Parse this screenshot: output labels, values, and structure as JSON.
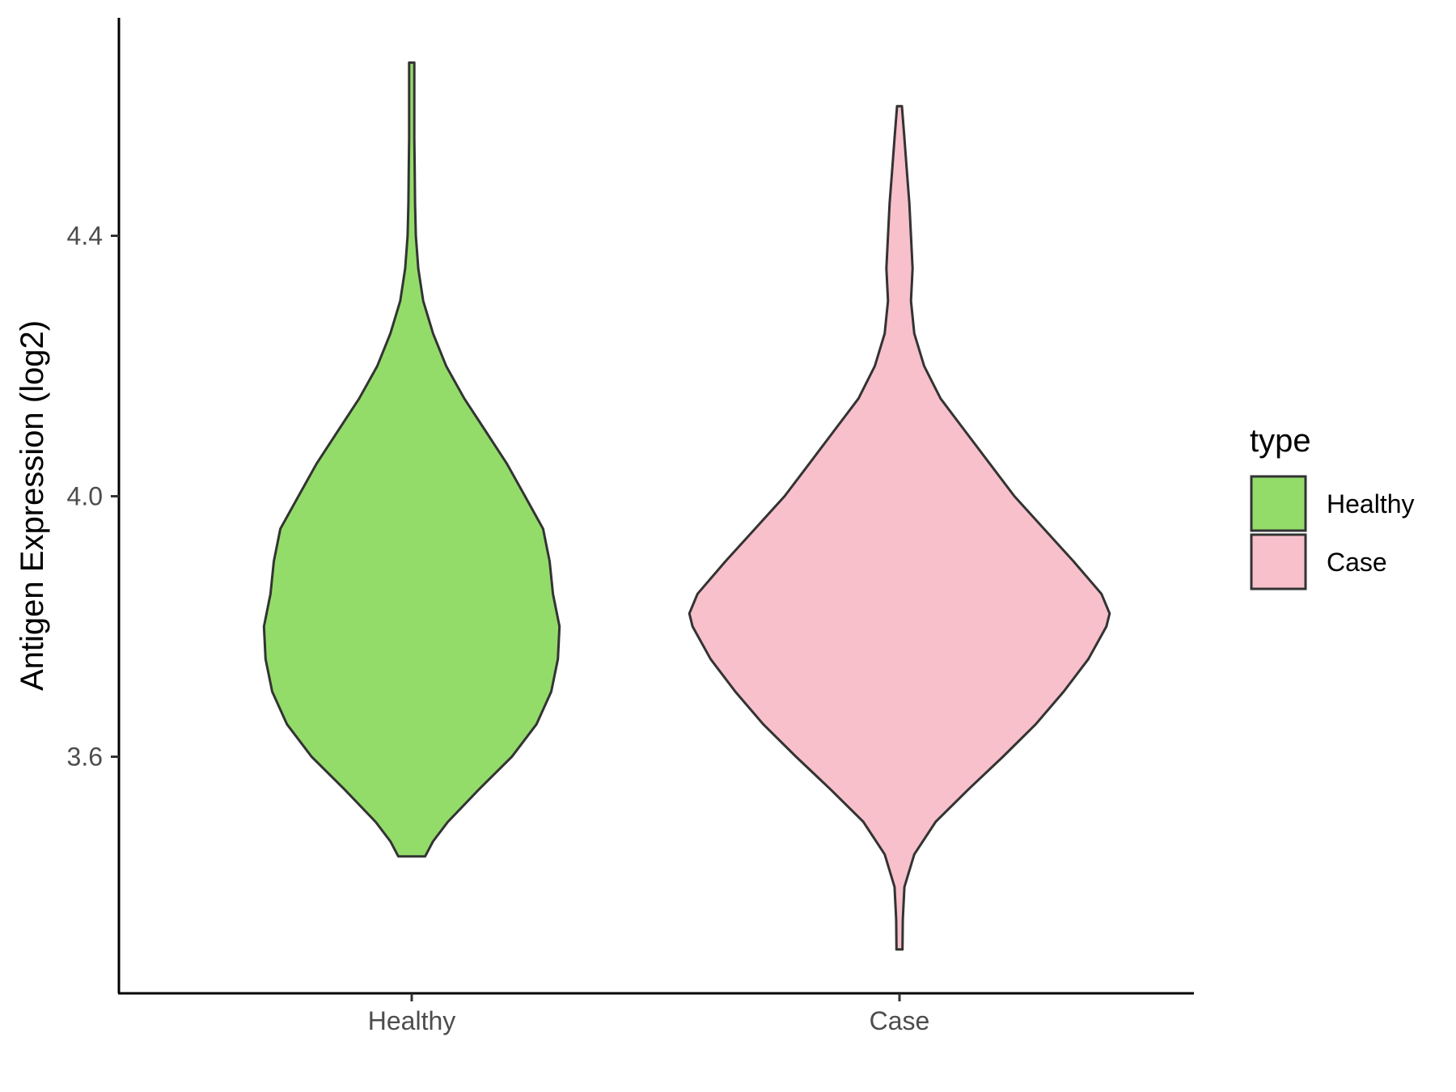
{
  "chart_data": {
    "type": "violin",
    "title": "",
    "xlabel": "",
    "ylabel": "Antigen Expression (log2)",
    "categories": [
      "Healthy",
      "Case"
    ],
    "yticks": [
      3.6,
      4.0,
      4.4
    ],
    "ylim": [
      3.25,
      4.75
    ],
    "grid": false,
    "legend": {
      "title": "type",
      "position": "right",
      "entries": [
        {
          "label": "Healthy",
          "color": "#93DC6A"
        },
        {
          "label": "Case",
          "color": "#F7C0CB"
        }
      ]
    },
    "series": [
      {
        "name": "Healthy",
        "color": "#93DC6A",
        "y_min": 3.447,
        "y_max": 4.666,
        "density_profile": [
          [
            3.447,
            0.082
          ],
          [
            3.47,
            0.13
          ],
          [
            3.5,
            0.22
          ],
          [
            3.55,
            0.41
          ],
          [
            3.6,
            0.61
          ],
          [
            3.65,
            0.76
          ],
          [
            3.7,
            0.85
          ],
          [
            3.75,
            0.89
          ],
          [
            3.8,
            0.9
          ],
          [
            3.85,
            0.86
          ],
          [
            3.9,
            0.84
          ],
          [
            3.95,
            0.8
          ],
          [
            4.0,
            0.69
          ],
          [
            4.05,
            0.58
          ],
          [
            4.1,
            0.45
          ],
          [
            4.15,
            0.32
          ],
          [
            4.2,
            0.21
          ],
          [
            4.25,
            0.13
          ],
          [
            4.3,
            0.07
          ],
          [
            4.35,
            0.04
          ],
          [
            4.4,
            0.025
          ],
          [
            4.45,
            0.02
          ],
          [
            4.5,
            0.018
          ],
          [
            4.55,
            0.016
          ],
          [
            4.6,
            0.016
          ],
          [
            4.666,
            0.016
          ]
        ]
      },
      {
        "name": "Case",
        "color": "#F7C0CB",
        "y_min": 3.304,
        "y_max": 4.599,
        "density_profile": [
          [
            3.304,
            0.018
          ],
          [
            3.35,
            0.02
          ],
          [
            3.4,
            0.03
          ],
          [
            3.45,
            0.09
          ],
          [
            3.5,
            0.22
          ],
          [
            3.55,
            0.42
          ],
          [
            3.6,
            0.63
          ],
          [
            3.65,
            0.83
          ],
          [
            3.7,
            1.0
          ],
          [
            3.75,
            1.15
          ],
          [
            3.8,
            1.26
          ],
          [
            3.82,
            1.28
          ],
          [
            3.85,
            1.23
          ],
          [
            3.9,
            1.06
          ],
          [
            3.95,
            0.88
          ],
          [
            4.0,
            0.7
          ],
          [
            4.05,
            0.55
          ],
          [
            4.1,
            0.4
          ],
          [
            4.15,
            0.25
          ],
          [
            4.2,
            0.15
          ],
          [
            4.25,
            0.09
          ],
          [
            4.3,
            0.07
          ],
          [
            4.35,
            0.08
          ],
          [
            4.4,
            0.07
          ],
          [
            4.45,
            0.06
          ],
          [
            4.5,
            0.045
          ],
          [
            4.55,
            0.03
          ],
          [
            4.599,
            0.015
          ]
        ]
      }
    ]
  }
}
